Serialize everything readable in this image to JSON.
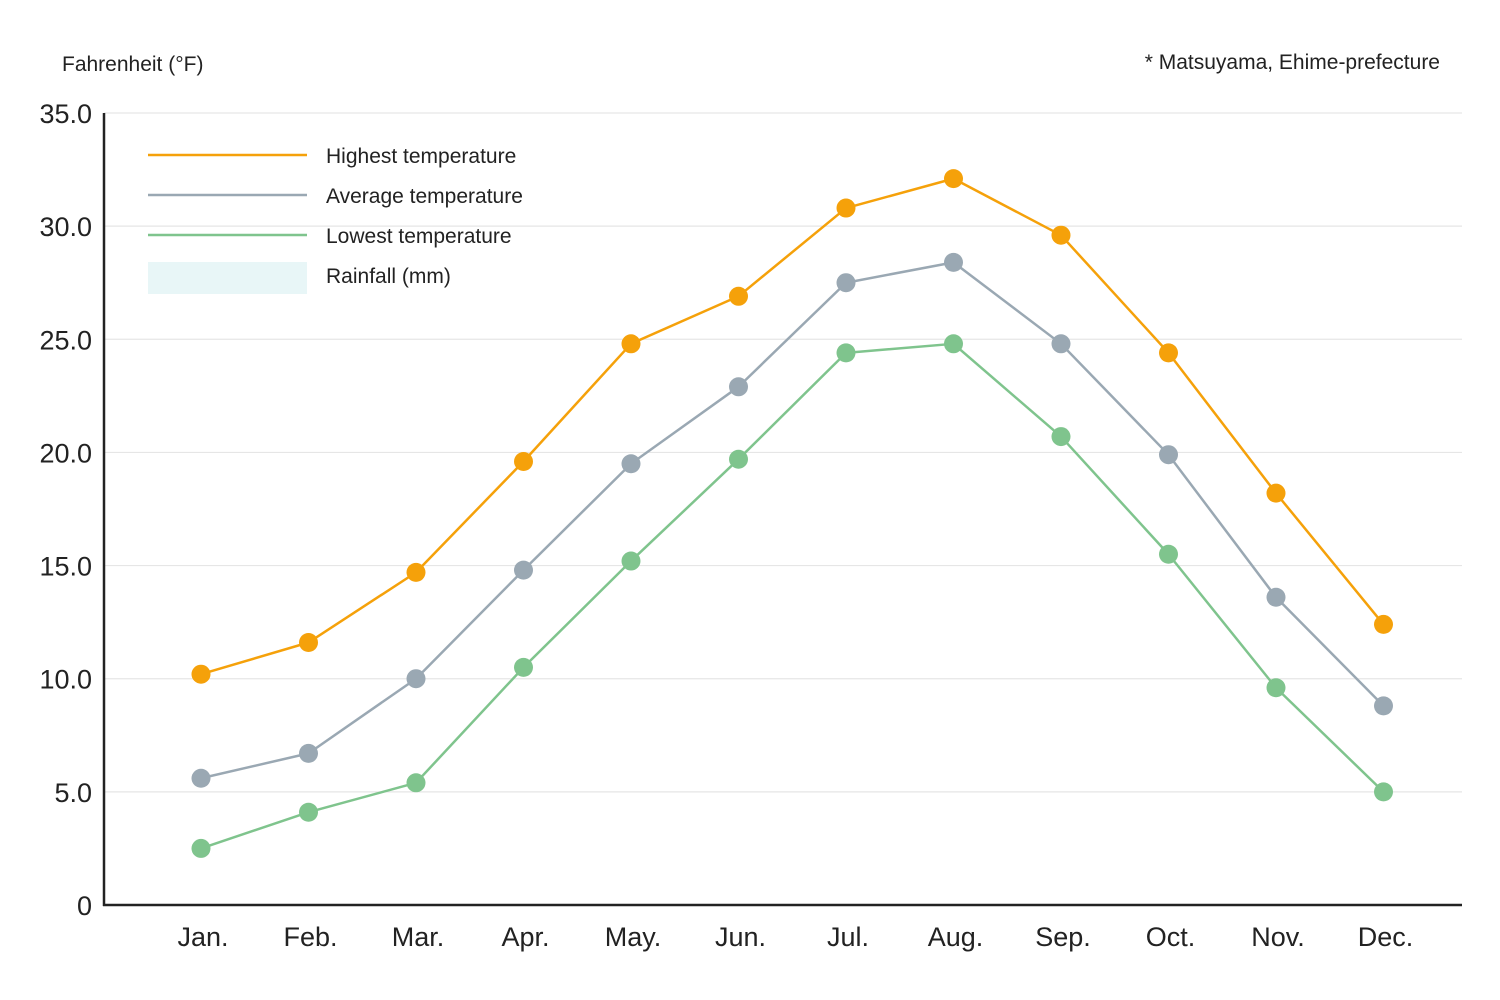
{
  "chart_data": {
    "type": "line",
    "ylabel": "Fahrenheit (°F)",
    "note": "* Matsuyama, Ehime-prefecture",
    "categories": [
      "Jan.",
      "Feb.",
      "Mar.",
      "Apr.",
      "May.",
      "Jun.",
      "Jul.",
      "Aug.",
      "Sep.",
      "Oct.",
      "Nov.",
      "Dec."
    ],
    "ylim": [
      0,
      35
    ],
    "yticks": [
      "0",
      "5.0",
      "10.0",
      "15.0",
      "20.0",
      "25.0",
      "30.0",
      "35.0"
    ],
    "ytick_values": [
      0,
      5,
      10,
      15,
      20,
      25,
      30,
      35
    ],
    "grid": true,
    "legend_position": "top-left",
    "series": [
      {
        "name": "Highest temperature",
        "color": "#f5a10a",
        "values": [
          10.2,
          11.6,
          14.7,
          19.6,
          24.8,
          26.9,
          30.8,
          32.1,
          29.6,
          24.4,
          18.2,
          12.4
        ]
      },
      {
        "name": "Average temperature",
        "color": "#9aa8b3",
        "values": [
          5.6,
          6.7,
          10.0,
          14.8,
          19.5,
          22.9,
          27.5,
          28.4,
          24.8,
          19.9,
          13.6,
          8.8
        ]
      },
      {
        "name": "Lowest temperature",
        "color": "#7fc48d",
        "values": [
          2.5,
          4.1,
          5.4,
          10.5,
          15.2,
          19.7,
          24.4,
          24.8,
          20.7,
          15.5,
          9.6,
          5.0
        ]
      }
    ],
    "extra_legend": {
      "name": "Rainfall (mm)",
      "color": "#e8f6f7"
    }
  }
}
